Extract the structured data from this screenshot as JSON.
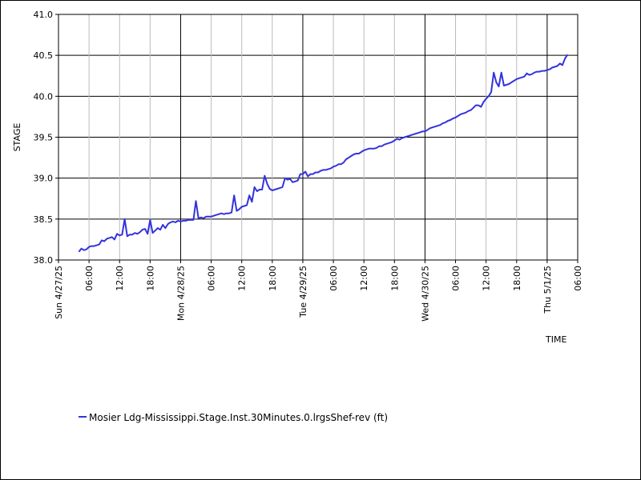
{
  "chart_data": {
    "type": "line",
    "title": "",
    "xlabel": "TIME",
    "ylabel": "STAGE",
    "ylim": [
      38.0,
      41.0
    ],
    "yticks": [
      "38.0",
      "38.5",
      "39.0",
      "39.5",
      "40.0",
      "40.5",
      "41.0"
    ],
    "xlim_hours": [
      0,
      102
    ],
    "xticks": [
      {
        "h": 0,
        "label": "Sun 4/27/25",
        "major": true
      },
      {
        "h": 6,
        "label": "06:00",
        "major": false
      },
      {
        "h": 12,
        "label": "12:00",
        "major": false
      },
      {
        "h": 18,
        "label": "18:00",
        "major": false
      },
      {
        "h": 24,
        "label": "Mon 4/28/25",
        "major": true
      },
      {
        "h": 30,
        "label": "06:00",
        "major": false
      },
      {
        "h": 36,
        "label": "12:00",
        "major": false
      },
      {
        "h": 42,
        "label": "18:00",
        "major": false
      },
      {
        "h": 48,
        "label": "Tue 4/29/25",
        "major": true
      },
      {
        "h": 54,
        "label": "06:00",
        "major": false
      },
      {
        "h": 60,
        "label": "12:00",
        "major": false
      },
      {
        "h": 66,
        "label": "18:00",
        "major": false
      },
      {
        "h": 72,
        "label": "Wed 4/30/25",
        "major": true
      },
      {
        "h": 78,
        "label": "06:00",
        "major": false
      },
      {
        "h": 84,
        "label": "12:00",
        "major": false
      },
      {
        "h": 90,
        "label": "18:00",
        "major": false
      },
      {
        "h": 96,
        "label": "Thu 5/1/25",
        "major": true
      },
      {
        "h": 102,
        "label": "06:00",
        "major": false
      }
    ],
    "grid": true,
    "legend_position": "bottom-left",
    "series": [
      {
        "name": "Mosier Ldg-Mississippi.Stage.Inst.30Minutes.0.lrgsShef-rev (ft)",
        "color": "#3333dd",
        "points": [
          [
            4.0,
            38.1
          ],
          [
            4.5,
            38.14
          ],
          [
            5.0,
            38.12
          ],
          [
            5.5,
            38.13
          ],
          [
            6.0,
            38.16
          ],
          [
            6.5,
            38.17
          ],
          [
            7.0,
            38.17
          ],
          [
            7.5,
            38.18
          ],
          [
            8.0,
            38.19
          ],
          [
            8.5,
            38.24
          ],
          [
            9.0,
            38.23
          ],
          [
            9.5,
            38.26
          ],
          [
            10.0,
            38.27
          ],
          [
            10.5,
            38.28
          ],
          [
            11.0,
            38.25
          ],
          [
            11.5,
            38.32
          ],
          [
            12.0,
            38.3
          ],
          [
            12.5,
            38.31
          ],
          [
            13.0,
            38.5
          ],
          [
            13.5,
            38.29
          ],
          [
            14.0,
            38.31
          ],
          [
            14.5,
            38.31
          ],
          [
            15.0,
            38.33
          ],
          [
            15.5,
            38.32
          ],
          [
            16.0,
            38.34
          ],
          [
            16.5,
            38.37
          ],
          [
            17.0,
            38.38
          ],
          [
            17.5,
            38.32
          ],
          [
            18.0,
            38.49
          ],
          [
            18.5,
            38.33
          ],
          [
            19.0,
            38.36
          ],
          [
            19.5,
            38.39
          ],
          [
            20.0,
            38.37
          ],
          [
            20.5,
            38.43
          ],
          [
            21.0,
            38.39
          ],
          [
            21.5,
            38.44
          ],
          [
            22.0,
            38.46
          ],
          [
            22.5,
            38.47
          ],
          [
            23.0,
            38.46
          ],
          [
            23.5,
            38.48
          ],
          [
            24.0,
            38.47
          ],
          [
            24.5,
            38.48
          ],
          [
            25.0,
            38.48
          ],
          [
            25.5,
            38.49
          ],
          [
            26.0,
            38.49
          ],
          [
            26.5,
            38.49
          ],
          [
            27.0,
            38.72
          ],
          [
            27.5,
            38.51
          ],
          [
            28.0,
            38.52
          ],
          [
            28.5,
            38.51
          ],
          [
            29.0,
            38.53
          ],
          [
            29.5,
            38.53
          ],
          [
            30.0,
            38.53
          ],
          [
            30.5,
            38.54
          ],
          [
            31.0,
            38.55
          ],
          [
            31.5,
            38.56
          ],
          [
            32.0,
            38.57
          ],
          [
            32.5,
            38.56
          ],
          [
            33.0,
            38.57
          ],
          [
            33.5,
            38.57
          ],
          [
            34.0,
            38.58
          ],
          [
            34.5,
            38.79
          ],
          [
            35.0,
            38.6
          ],
          [
            35.5,
            38.62
          ],
          [
            36.0,
            38.65
          ],
          [
            36.5,
            38.66
          ],
          [
            37.0,
            38.67
          ],
          [
            37.5,
            38.79
          ],
          [
            38.0,
            38.71
          ],
          [
            38.5,
            38.89
          ],
          [
            39.0,
            38.84
          ],
          [
            39.5,
            38.86
          ],
          [
            40.0,
            38.86
          ],
          [
            40.5,
            39.03
          ],
          [
            41.0,
            38.93
          ],
          [
            41.5,
            38.87
          ],
          [
            42.0,
            38.85
          ],
          [
            42.5,
            38.86
          ],
          [
            43.0,
            38.87
          ],
          [
            43.5,
            38.88
          ],
          [
            44.0,
            38.89
          ],
          [
            44.5,
            39.0
          ],
          [
            45.0,
            38.98
          ],
          [
            45.5,
            38.99
          ],
          [
            46.0,
            38.95
          ],
          [
            46.5,
            38.96
          ],
          [
            47.0,
            38.97
          ],
          [
            47.5,
            39.05
          ],
          [
            48.0,
            39.05
          ],
          [
            48.5,
            39.08
          ],
          [
            49.0,
            39.02
          ],
          [
            49.5,
            39.05
          ],
          [
            50.0,
            39.05
          ],
          [
            50.5,
            39.07
          ],
          [
            51.0,
            39.07
          ],
          [
            51.5,
            39.09
          ],
          [
            52.0,
            39.1
          ],
          [
            52.5,
            39.1
          ],
          [
            53.0,
            39.11
          ],
          [
            53.5,
            39.12
          ],
          [
            54.0,
            39.14
          ],
          [
            54.5,
            39.15
          ],
          [
            55.0,
            39.17
          ],
          [
            55.5,
            39.17
          ],
          [
            56.0,
            39.19
          ],
          [
            56.5,
            39.23
          ],
          [
            57.0,
            39.25
          ],
          [
            57.5,
            39.27
          ],
          [
            58.0,
            39.29
          ],
          [
            58.5,
            39.3
          ],
          [
            59.0,
            39.3
          ],
          [
            59.5,
            39.32
          ],
          [
            60.0,
            39.34
          ],
          [
            60.5,
            39.35
          ],
          [
            61.0,
            39.36
          ],
          [
            61.5,
            39.36
          ],
          [
            62.0,
            39.36
          ],
          [
            62.5,
            39.37
          ],
          [
            63.0,
            39.39
          ],
          [
            63.5,
            39.39
          ],
          [
            64.0,
            39.41
          ],
          [
            64.5,
            39.42
          ],
          [
            65.0,
            39.43
          ],
          [
            65.5,
            39.44
          ],
          [
            66.0,
            39.46
          ],
          [
            66.5,
            39.48
          ],
          [
            67.0,
            39.47
          ],
          [
            67.5,
            39.49
          ],
          [
            68.0,
            39.5
          ],
          [
            68.5,
            39.51
          ],
          [
            69.0,
            39.52
          ],
          [
            69.5,
            39.53
          ],
          [
            70.0,
            39.54
          ],
          [
            70.5,
            39.55
          ],
          [
            71.0,
            39.56
          ],
          [
            71.5,
            39.57
          ],
          [
            72.0,
            39.57
          ],
          [
            72.5,
            39.59
          ],
          [
            73.0,
            39.61
          ],
          [
            73.5,
            39.62
          ],
          [
            74.0,
            39.63
          ],
          [
            74.5,
            39.64
          ],
          [
            75.0,
            39.65
          ],
          [
            75.5,
            39.67
          ],
          [
            76.0,
            39.68
          ],
          [
            76.5,
            39.7
          ],
          [
            77.0,
            39.71
          ],
          [
            77.5,
            39.73
          ],
          [
            78.0,
            39.74
          ],
          [
            78.5,
            39.76
          ],
          [
            79.0,
            39.78
          ],
          [
            79.5,
            39.79
          ],
          [
            80.0,
            39.8
          ],
          [
            80.5,
            39.82
          ],
          [
            81.0,
            39.83
          ],
          [
            81.5,
            39.86
          ],
          [
            82.0,
            39.89
          ],
          [
            82.5,
            39.89
          ],
          [
            83.0,
            39.87
          ],
          [
            83.5,
            39.93
          ],
          [
            84.0,
            39.97
          ],
          [
            84.5,
            40.0
          ],
          [
            85.0,
            40.05
          ],
          [
            85.5,
            40.29
          ],
          [
            86.0,
            40.17
          ],
          [
            86.5,
            40.12
          ],
          [
            87.0,
            40.29
          ],
          [
            87.5,
            40.13
          ],
          [
            88.0,
            40.14
          ],
          [
            88.5,
            40.15
          ],
          [
            89.0,
            40.17
          ],
          [
            89.5,
            40.19
          ],
          [
            90.0,
            40.21
          ],
          [
            90.5,
            40.22
          ],
          [
            91.0,
            40.23
          ],
          [
            91.5,
            40.24
          ],
          [
            92.0,
            40.28
          ],
          [
            92.5,
            40.26
          ],
          [
            93.0,
            40.27
          ],
          [
            93.5,
            40.29
          ],
          [
            94.0,
            40.3
          ],
          [
            94.5,
            40.3
          ],
          [
            95.0,
            40.31
          ],
          [
            95.5,
            40.31
          ],
          [
            96.0,
            40.32
          ],
          [
            96.5,
            40.33
          ],
          [
            97.0,
            40.35
          ],
          [
            97.5,
            40.36
          ],
          [
            98.0,
            40.37
          ],
          [
            98.5,
            40.4
          ],
          [
            99.0,
            40.38
          ],
          [
            99.5,
            40.46
          ],
          [
            100.0,
            40.51
          ]
        ]
      }
    ]
  }
}
